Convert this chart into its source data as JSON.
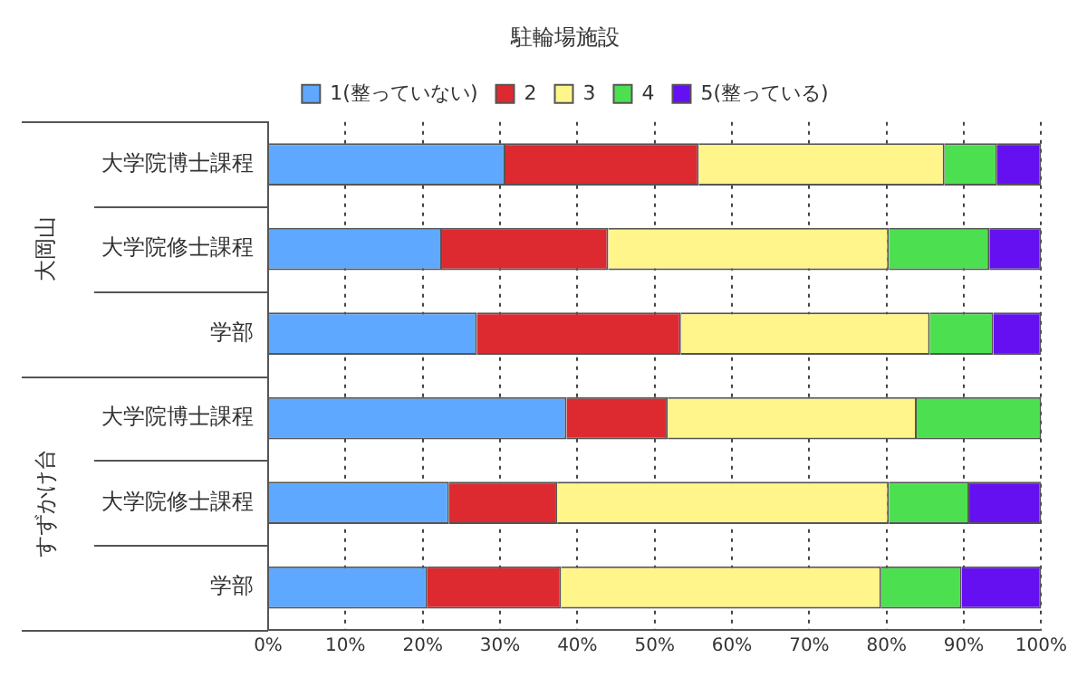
{
  "chart_data": {
    "type": "bar",
    "title": "駐輪場施設",
    "orientation": "horizontal",
    "stacked": true,
    "categories": [
      "大学院博士課程",
      "大学院修士課程",
      "学部",
      "大学院博士課程",
      "大学院修士課程",
      "学部"
    ],
    "annotations": [
      "大岡山",
      "すずかけ台"
    ],
    "series": [
      {
        "name": "1(整っていない)",
        "color": "#5fa8ff",
        "values": [
          30.7,
          22.5,
          27.0,
          38.6,
          23.4,
          20.6
        ]
      },
      {
        "name": "2",
        "color": "#dc2a30",
        "values": [
          25.0,
          21.5,
          26.4,
          13.1,
          14.0,
          17.3
        ]
      },
      {
        "name": "3",
        "color": "#fff58a",
        "values": [
          31.8,
          36.3,
          32.2,
          32.2,
          42.9,
          41.4
        ]
      },
      {
        "name": "4",
        "color": "#4ce050",
        "values": [
          6.8,
          13.0,
          8.2,
          16.1,
          10.4,
          10.4
        ]
      },
      {
        "name": "5(整っている)",
        "color": "#6510f0",
        "values": [
          5.7,
          6.7,
          6.2,
          0,
          9.3,
          10.3
        ]
      }
    ],
    "xlim": [
      0,
      100
    ],
    "xticks": [
      {
        "value": 0,
        "label": "0%"
      },
      {
        "value": 10,
        "label": "10%"
      },
      {
        "value": 20,
        "label": "20%"
      },
      {
        "value": 30,
        "label": "30%"
      },
      {
        "value": 40,
        "label": "40%"
      },
      {
        "value": 50,
        "label": "50%"
      },
      {
        "value": 60,
        "label": "60%"
      },
      {
        "value": 70,
        "label": "70%"
      },
      {
        "value": 80,
        "label": "80%"
      },
      {
        "value": 90,
        "label": "90%"
      },
      {
        "value": 100,
        "label": "100%"
      }
    ],
    "grid": "x",
    "legend": "top"
  }
}
